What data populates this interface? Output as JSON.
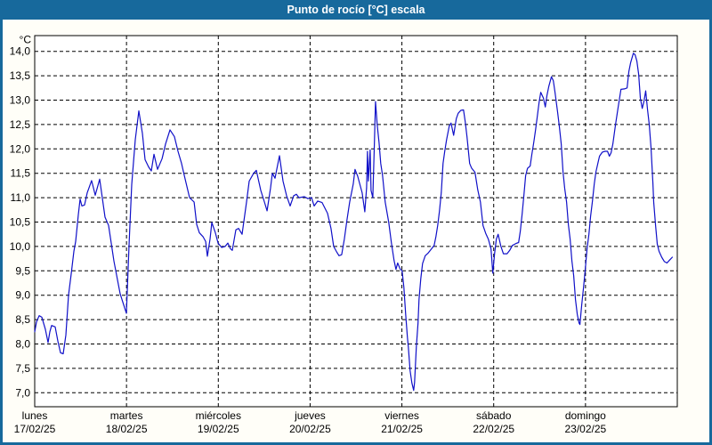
{
  "window": {
    "title": "Punto de rocío [°C] escala",
    "titlebar_color": "#17699c",
    "frame_color": "#17699c",
    "background_color": "#fffef8"
  },
  "chart_data": {
    "type": "line",
    "title": "Punto de rocío [°C] escala",
    "grid": "dashed",
    "legend_position": "none",
    "plot_bg": "#ffffff",
    "y_axis": {
      "unit_label": "°C",
      "min": 7.0,
      "max": 14.0,
      "step": 0.5,
      "tick_labels": [
        "14,0",
        "13,5",
        "13,0",
        "12,5",
        "12,0",
        "11,5",
        "11,0",
        "10,5",
        "10,0",
        "9,5",
        "9,0",
        "8,5",
        "8,0",
        "7,5",
        "7,0"
      ]
    },
    "x_axis": {
      "span_days": 7,
      "days": [
        {
          "name": "lunes",
          "date": "17/02/25"
        },
        {
          "name": "martes",
          "date": "18/02/25"
        },
        {
          "name": "miércoles",
          "date": "19/02/25"
        },
        {
          "name": "jueves",
          "date": "20/02/25"
        },
        {
          "name": "viernes",
          "date": "21/02/25"
        },
        {
          "name": "sábado",
          "date": "22/02/25"
        },
        {
          "name": "domingo",
          "date": "23/02/25"
        }
      ]
    },
    "series": [
      {
        "name": "Punto de rocío",
        "color": "#1010c8",
        "points": [
          [
            0.0,
            8.25
          ],
          [
            0.019,
            8.45
          ],
          [
            0.048,
            8.58
          ],
          [
            0.078,
            8.55
          ],
          [
            0.116,
            8.3
          ],
          [
            0.145,
            8.03
          ],
          [
            0.165,
            8.25
          ],
          [
            0.184,
            8.38
          ],
          [
            0.223,
            8.35
          ],
          [
            0.252,
            8.06
          ],
          [
            0.281,
            7.82
          ],
          [
            0.31,
            7.8
          ],
          [
            0.339,
            8.18
          ],
          [
            0.368,
            9.0
          ],
          [
            0.398,
            9.45
          ],
          [
            0.427,
            9.9
          ],
          [
            0.446,
            10.1
          ],
          [
            0.475,
            10.65
          ],
          [
            0.494,
            10.97
          ],
          [
            0.514,
            10.83
          ],
          [
            0.543,
            10.85
          ],
          [
            0.572,
            11.1
          ],
          [
            0.591,
            11.2
          ],
          [
            0.62,
            11.35
          ],
          [
            0.64,
            11.2
          ],
          [
            0.659,
            11.05
          ],
          [
            0.708,
            11.38
          ],
          [
            0.766,
            10.6
          ],
          [
            0.805,
            10.43
          ],
          [
            0.863,
            9.7
          ],
          [
            0.931,
            9.03
          ],
          [
            0.97,
            8.8
          ],
          [
            0.999,
            8.63
          ],
          [
            1.029,
            10.07
          ],
          [
            1.057,
            11.27
          ],
          [
            1.096,
            12.19
          ],
          [
            1.134,
            12.78
          ],
          [
            1.173,
            12.32
          ],
          [
            1.202,
            11.78
          ],
          [
            1.241,
            11.63
          ],
          [
            1.27,
            11.55
          ],
          [
            1.299,
            11.89
          ],
          [
            1.338,
            11.58
          ],
          [
            1.387,
            11.8
          ],
          [
            1.425,
            12.1
          ],
          [
            1.474,
            12.39
          ],
          [
            1.522,
            12.25
          ],
          [
            1.561,
            11.95
          ],
          [
            1.6,
            11.7
          ],
          [
            1.629,
            11.46
          ],
          [
            1.687,
            11.0
          ],
          [
            1.736,
            10.91
          ],
          [
            1.765,
            10.45
          ],
          [
            1.794,
            10.28
          ],
          [
            1.833,
            10.2
          ],
          [
            1.862,
            10.1
          ],
          [
            1.881,
            9.8
          ],
          [
            1.91,
            10.15
          ],
          [
            1.929,
            10.49
          ],
          [
            1.968,
            10.28
          ],
          [
            1.997,
            10.07
          ],
          [
            2.036,
            9.98
          ],
          [
            2.075,
            10.0
          ],
          [
            2.104,
            10.07
          ],
          [
            2.133,
            9.95
          ],
          [
            2.152,
            9.92
          ],
          [
            2.191,
            10.34
          ],
          [
            2.22,
            10.37
          ],
          [
            2.259,
            10.25
          ],
          [
            2.307,
            10.91
          ],
          [
            2.337,
            11.34
          ],
          [
            2.385,
            11.5
          ],
          [
            2.414,
            11.56
          ],
          [
            2.463,
            11.15
          ],
          [
            2.502,
            10.91
          ],
          [
            2.531,
            10.73
          ],
          [
            2.569,
            11.2
          ],
          [
            2.589,
            11.5
          ],
          [
            2.618,
            11.4
          ],
          [
            2.666,
            11.86
          ],
          [
            2.705,
            11.34
          ],
          [
            2.744,
            11.04
          ],
          [
            2.783,
            10.83
          ],
          [
            2.821,
            11.04
          ],
          [
            2.85,
            11.07
          ],
          [
            2.879,
            11.0
          ],
          [
            2.938,
            11.02
          ],
          [
            2.976,
            10.98
          ],
          [
            3.015,
            11.0
          ],
          [
            3.044,
            10.83
          ],
          [
            3.083,
            10.93
          ],
          [
            3.131,
            10.9
          ],
          [
            3.19,
            10.68
          ],
          [
            3.228,
            10.37
          ],
          [
            3.257,
            10.0
          ],
          [
            3.286,
            9.9
          ],
          [
            3.315,
            9.81
          ],
          [
            3.344,
            9.83
          ],
          [
            3.373,
            10.15
          ],
          [
            3.402,
            10.55
          ],
          [
            3.431,
            10.91
          ],
          [
            3.47,
            11.28
          ],
          [
            3.489,
            11.58
          ],
          [
            3.518,
            11.44
          ],
          [
            3.567,
            11.1
          ],
          [
            3.596,
            10.71
          ],
          [
            3.615,
            11.2
          ],
          [
            3.625,
            11.95
          ],
          [
            3.635,
            11.34
          ],
          [
            3.654,
            11.98
          ],
          [
            3.664,
            11.15
          ],
          [
            3.683,
            11.0
          ],
          [
            3.702,
            12.2
          ],
          [
            3.712,
            12.97
          ],
          [
            3.731,
            12.5
          ],
          [
            3.751,
            12.13
          ],
          [
            3.77,
            11.7
          ],
          [
            3.789,
            11.46
          ],
          [
            3.818,
            10.91
          ],
          [
            3.857,
            10.49
          ],
          [
            3.886,
            10.07
          ],
          [
            3.915,
            9.71
          ],
          [
            3.935,
            9.53
          ],
          [
            3.954,
            9.66
          ],
          [
            3.983,
            9.53
          ],
          [
            4.002,
            9.5
          ],
          [
            4.022,
            9.16
          ],
          [
            4.041,
            8.61
          ],
          [
            4.06,
            8.13
          ],
          [
            4.07,
            7.94
          ],
          [
            4.089,
            7.45
          ],
          [
            4.109,
            7.2
          ],
          [
            4.128,
            7.05
          ],
          [
            4.138,
            7.21
          ],
          [
            4.157,
            7.94
          ],
          [
            4.176,
            8.43
          ],
          [
            4.186,
            8.91
          ],
          [
            4.206,
            9.34
          ],
          [
            4.225,
            9.65
          ],
          [
            4.254,
            9.81
          ],
          [
            4.283,
            9.86
          ],
          [
            4.322,
            9.95
          ],
          [
            4.351,
            10.02
          ],
          [
            4.371,
            10.2
          ],
          [
            4.39,
            10.43
          ],
          [
            4.409,
            10.73
          ],
          [
            4.429,
            11.1
          ],
          [
            4.448,
            11.7
          ],
          [
            4.467,
            11.95
          ],
          [
            4.487,
            12.19
          ],
          [
            4.516,
            12.47
          ],
          [
            4.535,
            12.53
          ],
          [
            4.564,
            12.28
          ],
          [
            4.593,
            12.62
          ],
          [
            4.613,
            12.73
          ],
          [
            4.642,
            12.79
          ],
          [
            4.671,
            12.8
          ],
          [
            4.69,
            12.56
          ],
          [
            4.709,
            12.25
          ],
          [
            4.738,
            11.7
          ],
          [
            4.758,
            11.61
          ],
          [
            4.796,
            11.52
          ],
          [
            4.826,
            11.16
          ],
          [
            4.855,
            10.91
          ],
          [
            4.884,
            10.43
          ],
          [
            4.913,
            10.27
          ],
          [
            4.942,
            10.15
          ],
          [
            4.971,
            9.95
          ],
          [
            4.99,
            9.45
          ],
          [
            5.01,
            9.85
          ],
          [
            5.029,
            10.15
          ],
          [
            5.048,
            10.25
          ],
          [
            5.077,
            10.01
          ],
          [
            5.106,
            9.85
          ],
          [
            5.145,
            9.85
          ],
          [
            5.174,
            9.92
          ],
          [
            5.203,
            10.02
          ],
          [
            5.242,
            10.06
          ],
          [
            5.271,
            10.08
          ],
          [
            5.29,
            10.31
          ],
          [
            5.31,
            10.67
          ],
          [
            5.329,
            11.04
          ],
          [
            5.348,
            11.45
          ],
          [
            5.368,
            11.6
          ],
          [
            5.397,
            11.65
          ],
          [
            5.416,
            11.89
          ],
          [
            5.436,
            12.13
          ],
          [
            5.455,
            12.37
          ],
          [
            5.474,
            12.65
          ],
          [
            5.494,
            12.95
          ],
          [
            5.513,
            13.16
          ],
          [
            5.542,
            13.04
          ],
          [
            5.562,
            12.86
          ],
          [
            5.581,
            13.1
          ],
          [
            5.6,
            13.28
          ],
          [
            5.629,
            13.48
          ],
          [
            5.649,
            13.4
          ],
          [
            5.668,
            13.16
          ],
          [
            5.697,
            12.74
          ],
          [
            5.716,
            12.44
          ],
          [
            5.736,
            12.1
          ],
          [
            5.755,
            11.53
          ],
          [
            5.774,
            11.19
          ],
          [
            5.794,
            10.91
          ],
          [
            5.813,
            10.45
          ],
          [
            5.833,
            10.15
          ],
          [
            5.852,
            9.7
          ],
          [
            5.871,
            9.4
          ],
          [
            5.891,
            8.91
          ],
          [
            5.91,
            8.61
          ],
          [
            5.93,
            8.43
          ],
          [
            5.939,
            8.4
          ],
          [
            5.959,
            8.8
          ],
          [
            5.978,
            9.15
          ],
          [
            5.998,
            9.55
          ],
          [
            6.017,
            9.95
          ],
          [
            6.037,
            10.25
          ],
          [
            6.056,
            10.62
          ],
          [
            6.075,
            10.92
          ],
          [
            6.095,
            11.28
          ],
          [
            6.114,
            11.53
          ],
          [
            6.134,
            11.7
          ],
          [
            6.153,
            11.85
          ],
          [
            6.182,
            11.93
          ],
          [
            6.211,
            11.95
          ],
          [
            6.24,
            11.95
          ],
          [
            6.26,
            11.85
          ],
          [
            6.279,
            11.92
          ],
          [
            6.298,
            12.1
          ],
          [
            6.327,
            12.5
          ],
          [
            6.356,
            12.86
          ],
          [
            6.386,
            13.22
          ],
          [
            6.424,
            13.23
          ],
          [
            6.453,
            13.25
          ],
          [
            6.473,
            13.59
          ],
          [
            6.492,
            13.77
          ],
          [
            6.521,
            13.96
          ],
          [
            6.54,
            13.93
          ],
          [
            6.56,
            13.8
          ],
          [
            6.579,
            13.53
          ],
          [
            6.598,
            13.04
          ],
          [
            6.618,
            12.83
          ],
          [
            6.637,
            12.98
          ],
          [
            6.656,
            13.19
          ],
          [
            6.676,
            12.8
          ],
          [
            6.695,
            12.5
          ],
          [
            6.714,
            12.02
          ],
          [
            6.734,
            11.3
          ],
          [
            6.743,
            10.91
          ],
          [
            6.763,
            10.43
          ],
          [
            6.782,
            10.05
          ],
          [
            6.801,
            9.9
          ],
          [
            6.83,
            9.78
          ],
          [
            6.859,
            9.69
          ],
          [
            6.888,
            9.66
          ],
          [
            6.917,
            9.72
          ],
          [
            6.946,
            9.78
          ]
        ]
      }
    ]
  }
}
